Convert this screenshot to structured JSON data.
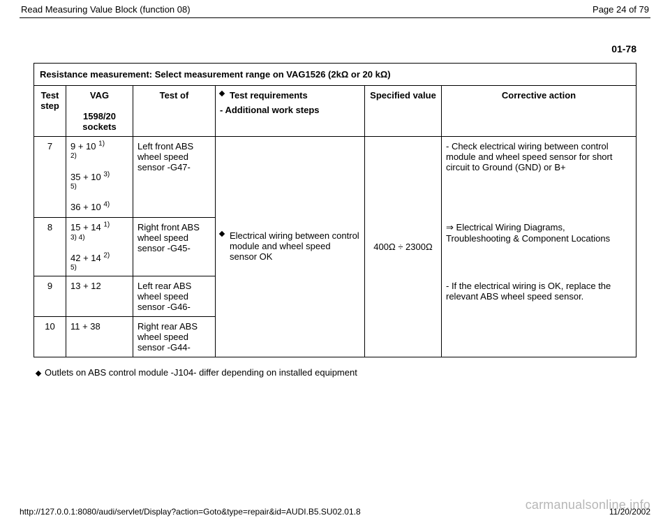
{
  "top": {
    "title": "Read Measuring Value Block (function 08)",
    "page": "Page 24 of 79"
  },
  "section_number": "01-78",
  "table": {
    "title_prefix": "Resistance measurement: Select measurement range on VAG1526 (2k",
    "title_mid": " or 20 k",
    "title_suffix": ")",
    "ohm": "Ω",
    "headers": {
      "test_step": "Test step",
      "vag_line1": "VAG",
      "vag_line2": "1598/20 sockets",
      "test_of": "Test of",
      "requirements_bullet": "Test requirements",
      "requirements_sub": "- Additional work steps",
      "specified": "Specified value",
      "corrective": "Corrective action"
    },
    "rows": [
      {
        "step": "7",
        "sockets": [
          {
            "main": "9 + 10",
            "sup": "1)",
            "sub": "2)"
          },
          {
            "main": "35 + 10",
            "sup": "3)",
            "sub": "5)"
          },
          {
            "main": "36 + 10",
            "sup": "4)",
            "sub": ""
          }
        ],
        "test_of": "Left front ABS wheel speed sensor -G47-"
      },
      {
        "step": "8",
        "sockets": [
          {
            "main": "15 + 14",
            "sup": "1)",
            "sub": "3) 4)"
          },
          {
            "main": "42 + 14",
            "sup": "2)",
            "sub": "5)"
          }
        ],
        "test_of": "Right front ABS wheel speed sensor -G45-"
      },
      {
        "step": "9",
        "sockets_plain": "13 + 12",
        "test_of": "Left rear ABS wheel speed sensor -G46-"
      },
      {
        "step": "10",
        "sockets_plain": "11 + 38",
        "test_of": "Right rear ABS wheel speed sensor -G44-"
      }
    ],
    "shared": {
      "req_bullet": "Electrical wiring between control module and wheel speed sensor OK",
      "spec_prefix": "400",
      "spec_range": " ÷ 2300",
      "corr1": "- Check electrical wiring between control module and wheel speed sensor for short circuit to Ground (GND) or B+",
      "corr2_arrow": "⇒",
      "corr2_text": " Electrical Wiring Diagrams, Troubleshooting & Component Locations",
      "corr3": "- If the electrical wiring is OK, replace the relevant ABS wheel speed sensor."
    }
  },
  "note": "Outlets on ABS control module -J104- differ depending on installed equipment",
  "watermark": "carmanualsonline.info",
  "footer": {
    "url": "http://127.0.0.1:8080/audi/servlet/Display?action=Goto&type=repair&id=AUDI.B5.SU02.01.8",
    "date": "11/20/2002"
  }
}
